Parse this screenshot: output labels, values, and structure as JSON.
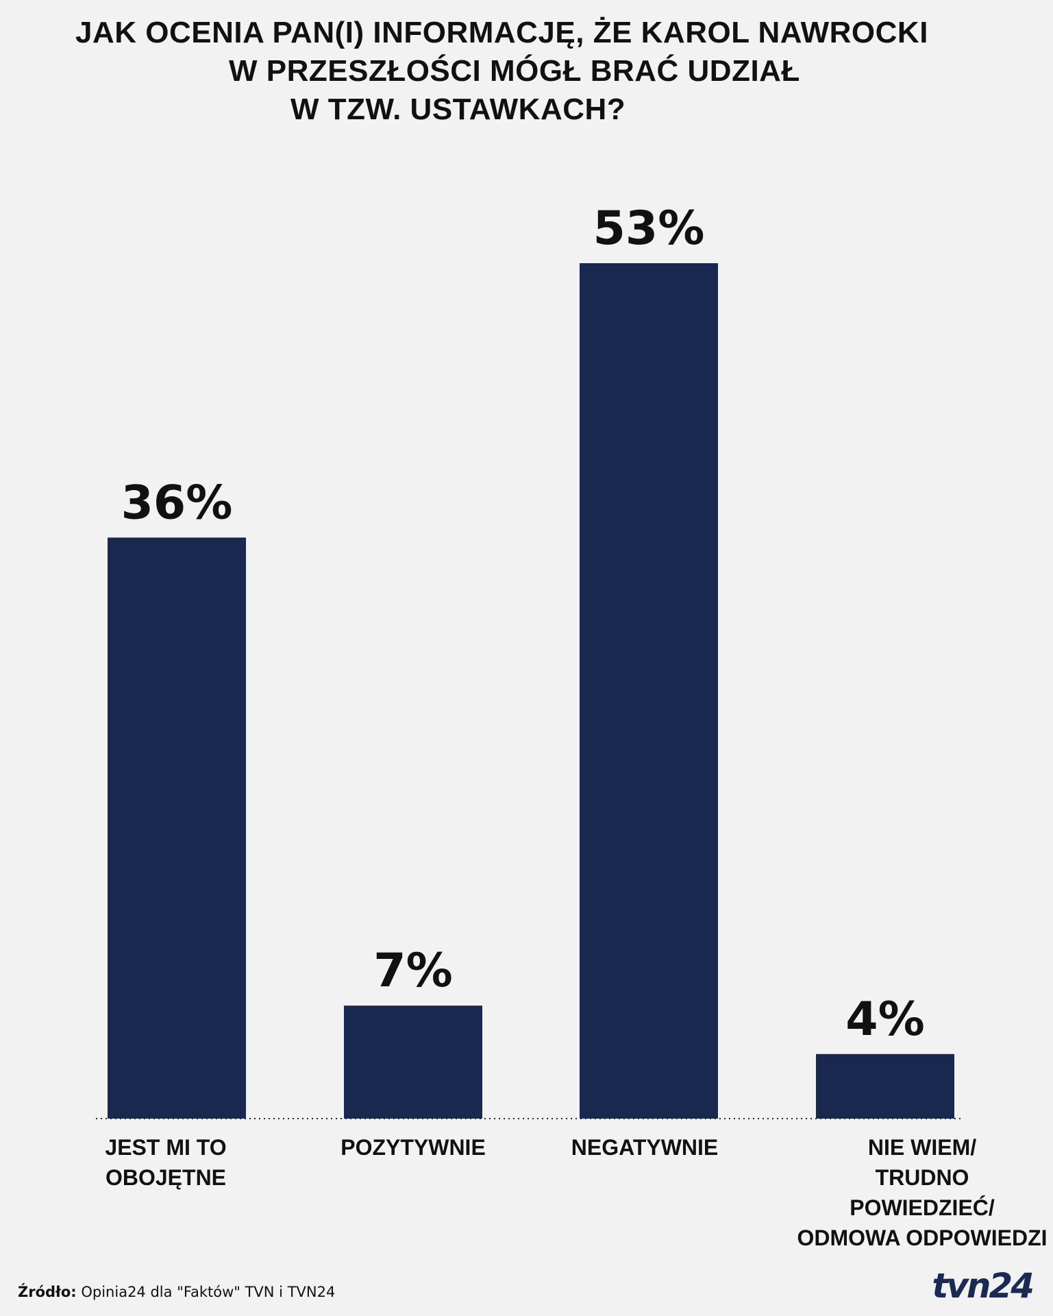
{
  "title_lines": [
    "JAK OCENIA PAN(I) INFORMACJĘ, ŻE KAROL NAWROCKI",
    "W PRZESZŁOŚCI MÓGŁ BRAĆ UDZIAŁ",
    "W TZW. USTAWKACH?"
  ],
  "source": {
    "label": "Źródło:",
    "text": "Opinia24 dla \"Faktów\" TVN i TVN24"
  },
  "logo_text": "tvn24",
  "colors": {
    "bar": "#19284f",
    "background": "#f2f2f2",
    "text": "#111111"
  },
  "chart_data": {
    "type": "bar",
    "title": "JAK OCENIA PAN(I) INFORMACJĘ, ŻE KAROL NAWROCKI W PRZESZŁOŚCI MÓGŁ BRAĆ UDZIAŁ W TZW. USTAWKACH?",
    "categories": [
      "JEST MI TO\nOBOJĘTNE",
      "POZYTYWNIE",
      "NEGATYWNIE",
      "NIE WIEM/\nTRUDNO\nPOWIEDZIEĆ/\nODMOWA ODPOWIEDZI"
    ],
    "values": [
      36,
      7,
      53,
      4
    ],
    "value_labels": [
      "36%",
      "7%",
      "53%",
      "4%"
    ],
    "unit": "%",
    "ylim": [
      0,
      53
    ],
    "grid": false,
    "legend": "none"
  }
}
